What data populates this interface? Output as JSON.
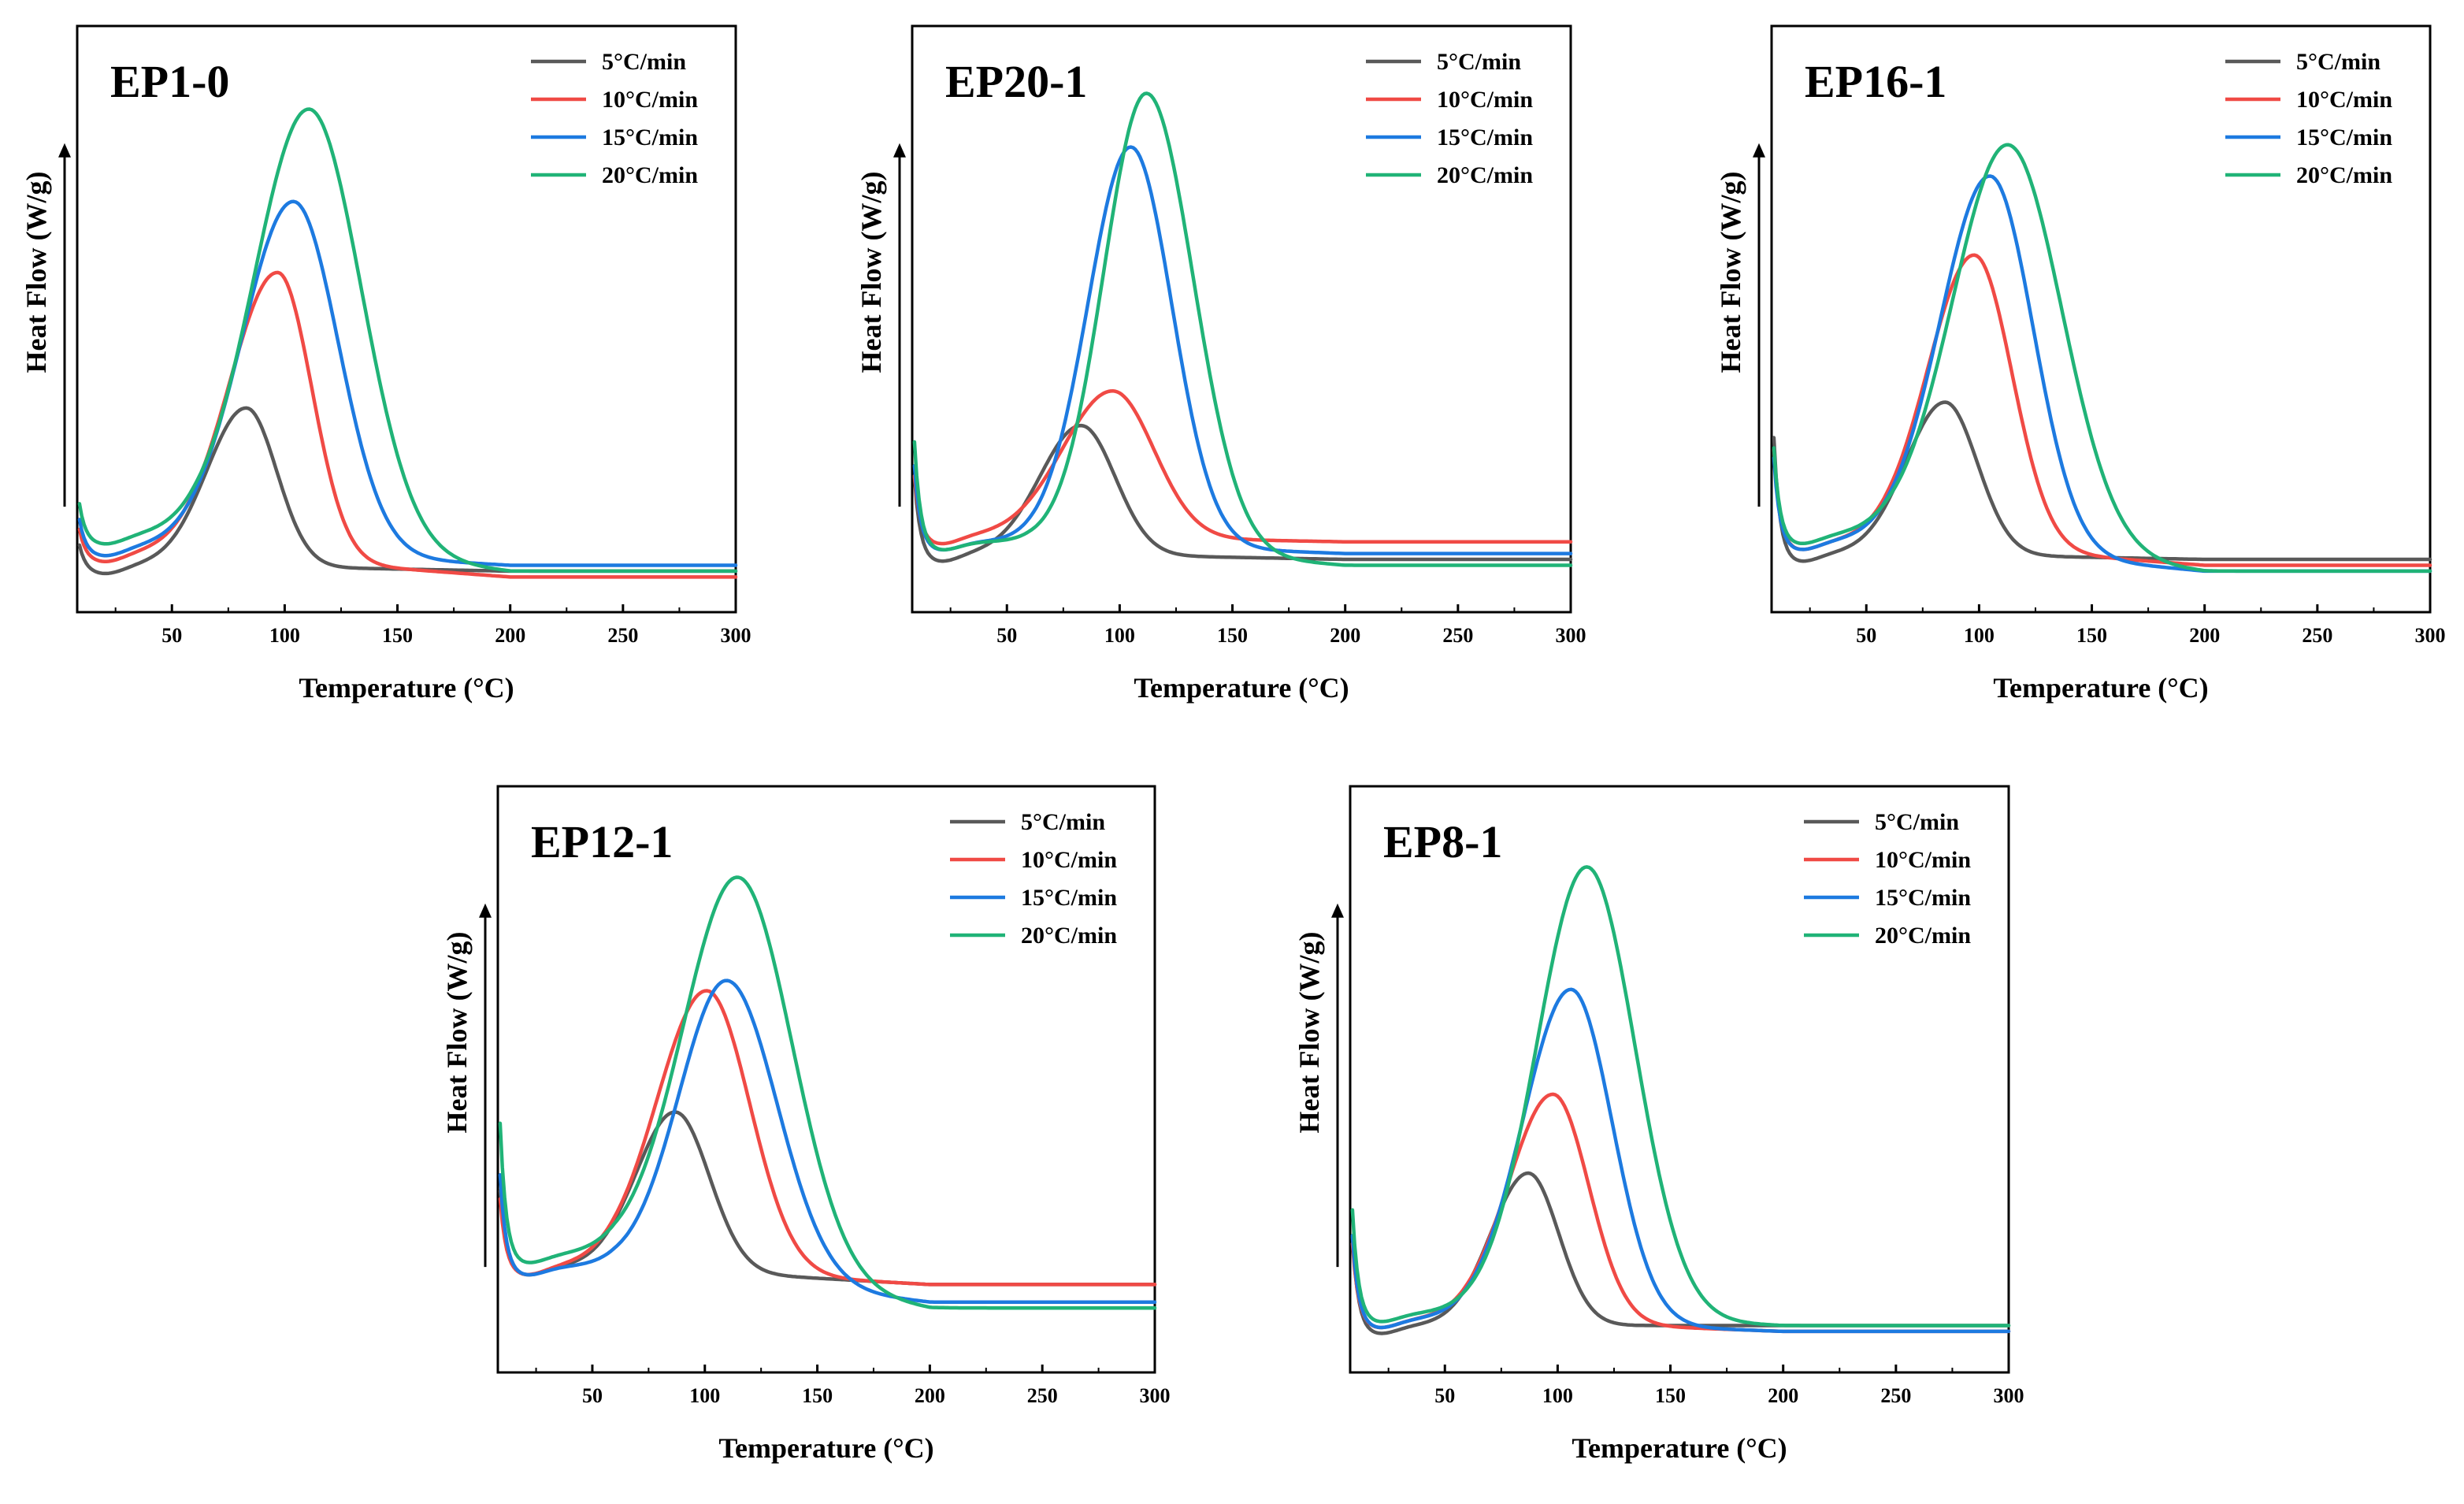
{
  "figure": {
    "colors": {
      "5C": "#595959",
      "10C": "#f04a45",
      "15C": "#1d7ae0",
      "20C": "#20b377",
      "axis": "#000000"
    }
  },
  "chart_data": [
    {
      "type": "line",
      "title": "EP1-0",
      "xlabel": "Temperature (°C)",
      "ylabel": "Heat Flow (W/g)",
      "xlim": [
        8,
        300
      ],
      "ylim": [
        0,
        1
      ],
      "xticks": [
        50,
        100,
        150,
        200,
        250,
        300
      ],
      "legend": "top-right",
      "series": [
        {
          "name": "5°C/min",
          "color": "#595959",
          "baseline": 0.08,
          "tail": 0.07,
          "peak_x": 83,
          "peak_y": 0.35,
          "w_left": 22,
          "w_right": 17,
          "init": 0.06
        },
        {
          "name": "10°C/min",
          "color": "#f04a45",
          "baseline": 0.1,
          "tail": 0.06,
          "peak_x": 97,
          "peak_y": 0.59,
          "w_left": 27,
          "w_right": 19,
          "init": 0.07
        },
        {
          "name": "15°C/min",
          "color": "#1d7ae0",
          "baseline": 0.11,
          "tail": 0.08,
          "peak_x": 104,
          "peak_y": 0.71,
          "w_left": 29,
          "w_right": 25,
          "init": 0.08
        },
        {
          "name": "20°C/min",
          "color": "#20b377",
          "baseline": 0.13,
          "tail": 0.07,
          "peak_x": 111,
          "peak_y": 0.88,
          "w_left": 31,
          "w_right": 29,
          "init": 0.09
        }
      ]
    },
    {
      "type": "line",
      "title": "EP20-1",
      "xlabel": "Temperature (°C)",
      "ylabel": "Heat Flow (W/g)",
      "xlim": [
        8,
        300
      ],
      "ylim": [
        0,
        1
      ],
      "xticks": [
        50,
        100,
        150,
        200,
        250,
        300
      ],
      "legend": "top-right",
      "series": [
        {
          "name": "5°C/min",
          "color": "#595959",
          "baseline": 0.1,
          "tail": 0.09,
          "peak_x": 83,
          "peak_y": 0.32,
          "w_left": 23,
          "w_right": 19,
          "init": 0.2
        },
        {
          "name": "10°C/min",
          "color": "#f04a45",
          "baseline": 0.13,
          "tail": 0.12,
          "peak_x": 97,
          "peak_y": 0.38,
          "w_left": 28,
          "w_right": 23,
          "init": 0.16
        },
        {
          "name": "15°C/min",
          "color": "#1d7ae0",
          "baseline": 0.12,
          "tail": 0.1,
          "peak_x": 105,
          "peak_y": 0.8,
          "w_left": 24,
          "w_right": 23,
          "init": 0.2
        },
        {
          "name": "20°C/min",
          "color": "#20b377",
          "baseline": 0.12,
          "tail": 0.08,
          "peak_x": 112,
          "peak_y": 0.9,
          "w_left": 24,
          "w_right": 26,
          "init": 0.26
        }
      ]
    },
    {
      "type": "line",
      "title": "EP16-1",
      "xlabel": "Temperature (°C)",
      "ylabel": "Heat Flow (W/g)",
      "xlim": [
        8,
        300
      ],
      "ylim": [
        0,
        1
      ],
      "xticks": [
        50,
        100,
        150,
        200,
        250,
        300
      ],
      "legend": "top-right",
      "series": [
        {
          "name": "5°C/min",
          "color": "#595959",
          "baseline": 0.1,
          "tail": 0.09,
          "peak_x": 85,
          "peak_y": 0.36,
          "w_left": 22,
          "w_right": 18,
          "init": 0.3
        },
        {
          "name": "10°C/min",
          "color": "#f04a45",
          "baseline": 0.12,
          "tail": 0.08,
          "peak_x": 98,
          "peak_y": 0.62,
          "w_left": 26,
          "w_right": 21,
          "init": 0.24
        },
        {
          "name": "15°C/min",
          "color": "#1d7ae0",
          "baseline": 0.12,
          "tail": 0.07,
          "peak_x": 105,
          "peak_y": 0.76,
          "w_left": 28,
          "w_right": 24,
          "init": 0.22
        },
        {
          "name": "20°C/min",
          "color": "#20b377",
          "baseline": 0.13,
          "tail": 0.07,
          "peak_x": 113,
          "peak_y": 0.82,
          "w_left": 31,
          "w_right": 30,
          "init": 0.23
        }
      ]
    },
    {
      "type": "line",
      "title": "EP12-1",
      "xlabel": "Temperature (°C)",
      "ylabel": "Heat Flow (W/g)",
      "xlim": [
        8,
        300
      ],
      "ylim": [
        0,
        1
      ],
      "xticks": [
        50,
        100,
        150,
        200,
        250,
        300
      ],
      "legend": "top-right",
      "series": [
        {
          "name": "5°C/min",
          "color": "#595959",
          "baseline": 0.18,
          "tail": 0.15,
          "peak_x": 87,
          "peak_y": 0.45,
          "w_left": 22,
          "w_right": 19,
          "init": 0.2
        },
        {
          "name": "10°C/min",
          "color": "#f04a45",
          "baseline": 0.18,
          "tail": 0.15,
          "peak_x": 101,
          "peak_y": 0.66,
          "w_left": 28,
          "w_right": 24,
          "init": 0.18
        },
        {
          "name": "15°C/min",
          "color": "#1d7ae0",
          "baseline": 0.18,
          "tail": 0.12,
          "peak_x": 110,
          "peak_y": 0.69,
          "w_left": 27,
          "w_right": 28,
          "init": 0.24
        },
        {
          "name": "20°C/min",
          "color": "#20b377",
          "baseline": 0.2,
          "tail": 0.11,
          "peak_x": 115,
          "peak_y": 0.88,
          "w_left": 31,
          "w_right": 30,
          "init": 0.34
        }
      ]
    },
    {
      "type": "line",
      "title": "EP8-1",
      "xlabel": "Temperature (°C)",
      "ylabel": "Heat Flow (W/g)",
      "xlim": [
        8,
        300
      ],
      "ylim": [
        0,
        1
      ],
      "xticks": [
        50,
        100,
        150,
        200,
        250,
        300
      ],
      "legend": "top-right",
      "series": [
        {
          "name": "5°C/min",
          "color": "#595959",
          "baseline": 0.08,
          "tail": 0.08,
          "peak_x": 87,
          "peak_y": 0.34,
          "w_left": 21,
          "w_right": 17,
          "init": 0.23
        },
        {
          "name": "10°C/min",
          "color": "#f04a45",
          "baseline": 0.09,
          "tail": 0.07,
          "peak_x": 98,
          "peak_y": 0.48,
          "w_left": 25,
          "w_right": 20,
          "init": 0.2
        },
        {
          "name": "15°C/min",
          "color": "#1d7ae0",
          "baseline": 0.09,
          "tail": 0.07,
          "peak_x": 106,
          "peak_y": 0.66,
          "w_left": 27,
          "w_right": 23,
          "init": 0.22
        },
        {
          "name": "20°C/min",
          "color": "#20b377",
          "baseline": 0.1,
          "tail": 0.08,
          "peak_x": 113,
          "peak_y": 0.87,
          "w_left": 28,
          "w_right": 27,
          "init": 0.27
        }
      ]
    }
  ]
}
